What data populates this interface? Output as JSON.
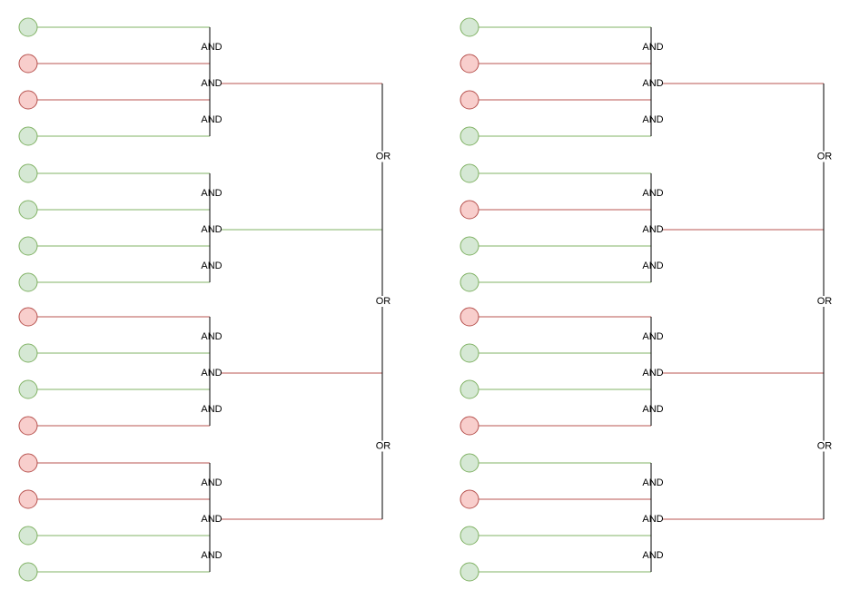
{
  "colors": {
    "true_fill": "#d5e8d4",
    "true_stroke": "#82b366",
    "false_fill": "#f8cecc",
    "false_stroke": "#b85450",
    "gate_line": "#000000"
  },
  "labels": {
    "and": "AND",
    "or": "OR"
  },
  "circuits": [
    {
      "groups": [
        {
          "inputs": [
            true,
            false,
            false,
            true
          ],
          "output": false
        },
        {
          "inputs": [
            true,
            true,
            true,
            true
          ],
          "output": true
        },
        {
          "inputs": [
            false,
            true,
            true,
            false
          ],
          "output": false
        },
        {
          "inputs": [
            false,
            false,
            true,
            true
          ],
          "output": false
        }
      ]
    },
    {
      "groups": [
        {
          "inputs": [
            true,
            false,
            false,
            true
          ],
          "output": false
        },
        {
          "inputs": [
            true,
            false,
            true,
            true
          ],
          "output": false
        },
        {
          "inputs": [
            false,
            true,
            true,
            false
          ],
          "output": false
        },
        {
          "inputs": [
            true,
            false,
            true,
            true
          ],
          "output": false
        }
      ]
    }
  ]
}
